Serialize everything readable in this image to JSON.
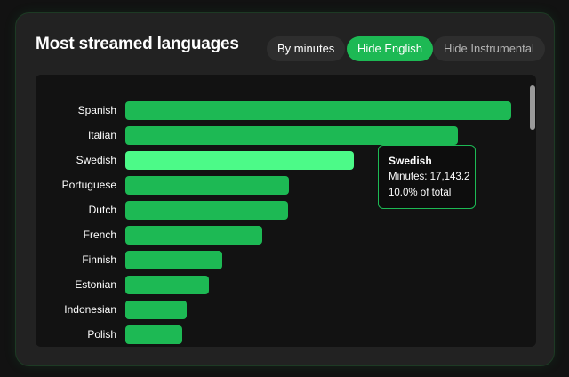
{
  "header": {
    "title": "Most streamed languages"
  },
  "filters": {
    "by_minutes": "By minutes",
    "hide_english": "Hide English",
    "hide_instrumental": "Hide Instrumental"
  },
  "tooltip": {
    "title": "Swedish",
    "minutes_line": "Minutes: 17,143.2",
    "percent_line": "10.0% of total"
  },
  "chart_data": {
    "type": "bar",
    "orientation": "horizontal",
    "categories": [
      "Spanish",
      "Italian",
      "Swedish",
      "Portuguese",
      "Dutch",
      "French",
      "Finnish",
      "Estonian",
      "Indonesian",
      "Polish"
    ],
    "values": [
      29000,
      25000,
      17143.2,
      12300,
      12200,
      10300,
      7300,
      6300,
      4600,
      4300
    ],
    "highlighted": "Swedish",
    "colors": {
      "bar": "#1db954",
      "highlight": "#4cfa88",
      "accent": "#1db954"
    },
    "grid": false,
    "legend": "none"
  }
}
